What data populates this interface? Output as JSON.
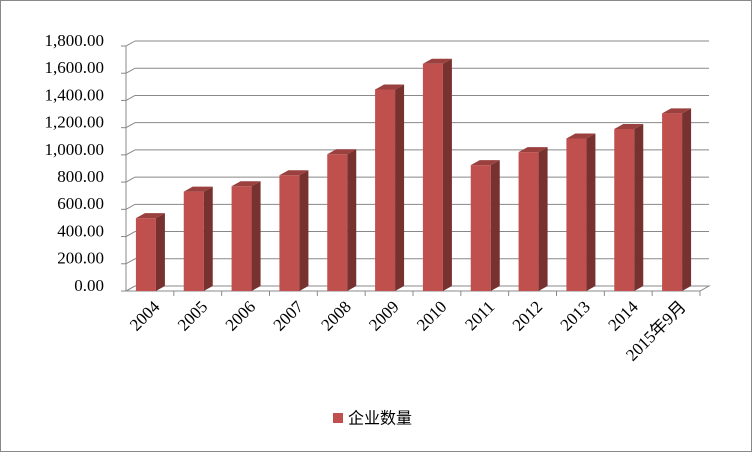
{
  "chart_data": {
    "type": "bar3d",
    "categories": [
      "2004",
      "2005",
      "2006",
      "2007",
      "2008",
      "2009",
      "2010",
      "2011",
      "2012",
      "2013",
      "2014",
      "2015年9月"
    ],
    "series": [
      {
        "name": "企业数量",
        "color": "#c0504d",
        "values": [
          535,
          730,
          770,
          850,
          1005,
          1480,
          1670,
          925,
          1020,
          1120,
          1190,
          1305
        ]
      }
    ],
    "ylim": [
      0,
      1800
    ],
    "yticks": [
      {
        "value": 0,
        "label": "0.00"
      },
      {
        "value": 200,
        "label": "200.00"
      },
      {
        "value": 400,
        "label": "400.00"
      },
      {
        "value": 600,
        "label": "600.00"
      },
      {
        "value": 800,
        "label": "800.00"
      },
      {
        "value": 1000,
        "label": "1,000.00"
      },
      {
        "value": 1200,
        "label": "1,200.00"
      },
      {
        "value": 1400,
        "label": "1,400.00"
      },
      {
        "value": 1600,
        "label": "1,600.00"
      },
      {
        "value": 1800,
        "label": "1,800.00"
      }
    ],
    "grid": true,
    "legend": "bottom"
  }
}
